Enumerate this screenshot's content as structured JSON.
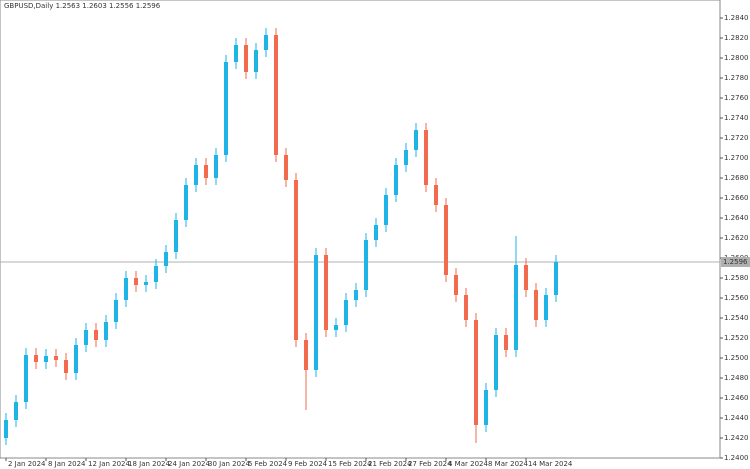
{
  "chart_data": {
    "type": "candlestick",
    "title": "GBPUSD,Daily  1.2563 1.2603 1.2556 1.2596",
    "up_color": "#1fb4e6",
    "down_color": "#f26b4f",
    "grid": false,
    "ylim": [
      1.24,
      1.2858
    ],
    "yticks": [
      {
        "value": 1.24,
        "label": "1.2400"
      },
      {
        "value": 1.242,
        "label": "1.2420"
      },
      {
        "value": 1.244,
        "label": "1.2440"
      },
      {
        "value": 1.246,
        "label": "1.2460"
      },
      {
        "value": 1.248,
        "label": "1.2480"
      },
      {
        "value": 1.25,
        "label": "1.2500"
      },
      {
        "value": 1.252,
        "label": "1.2520"
      },
      {
        "value": 1.254,
        "label": "1.2540"
      },
      {
        "value": 1.256,
        "label": "1.2560"
      },
      {
        "value": 1.258,
        "label": "1.2580"
      },
      {
        "value": 1.26,
        "label": "1.2600"
      },
      {
        "value": 1.262,
        "label": "1.2620"
      },
      {
        "value": 1.264,
        "label": "1.2640"
      },
      {
        "value": 1.266,
        "label": "1.2660"
      },
      {
        "value": 1.268,
        "label": "1.2680"
      },
      {
        "value": 1.27,
        "label": "1.2700"
      },
      {
        "value": 1.272,
        "label": "1.2720"
      },
      {
        "value": 1.274,
        "label": "1.2740"
      },
      {
        "value": 1.276,
        "label": "1.2760"
      },
      {
        "value": 1.278,
        "label": "1.2780"
      },
      {
        "value": 1.28,
        "label": "1.2800"
      },
      {
        "value": 1.282,
        "label": "1.2820"
      },
      {
        "value": 1.284,
        "label": "1.2840"
      }
    ],
    "bid": {
      "value": 1.2596,
      "label": "1.2596"
    },
    "categories": [
      "2 Jan 2024",
      null,
      null,
      null,
      "8 Jan 2024",
      null,
      null,
      null,
      "12 Jan 2024",
      null,
      null,
      null,
      "18 Jan 2024",
      null,
      null,
      null,
      "24 Jan 2024",
      null,
      null,
      null,
      "30 Jan 2024",
      null,
      null,
      null,
      "5 Feb 2024",
      null,
      null,
      null,
      "9 Feb 2024",
      null,
      null,
      null,
      "15 Feb 2024",
      null,
      null,
      null,
      "21 Feb 2024",
      null,
      null,
      null,
      "27 Feb 2024",
      null,
      null,
      null,
      "4 Mar 2024",
      null,
      null,
      null,
      "8 Mar 2024",
      null,
      null,
      null,
      "14 Mar 2024",
      null,
      null,
      null
    ],
    "open": [
      1.242,
      1.2438,
      1.2456,
      1.2503,
      1.2496,
      1.2502,
      1.2498,
      1.2485,
      1.2513,
      1.2528,
      1.2518,
      1.2536,
      1.2558,
      1.258,
      1.2573,
      1.2576,
      1.2592,
      1.2606,
      1.2638,
      1.2673,
      1.2693,
      1.268,
      1.2703,
      1.2796,
      1.2813,
      1.2786,
      1.2808,
      1.2823,
      1.2703,
      1.2678,
      1.2518,
      1.2488,
      1.2603,
      1.2528,
      1.2533,
      1.2558,
      1.2568,
      1.2618,
      1.2633,
      1.2663,
      1.2693,
      1.2708,
      1.2728,
      1.2673,
      1.2653,
      1.2583,
      1.2563,
      1.2538,
      1.2433,
      1.2468,
      1.2523,
      1.2508,
      1.2593,
      1.2568,
      1.2538,
      1.2563
    ],
    "high": [
      1.2445,
      1.2463,
      1.251,
      1.251,
      1.2509,
      1.2509,
      1.2505,
      1.252,
      1.2535,
      1.2535,
      1.2543,
      1.2565,
      1.2587,
      1.2587,
      1.2583,
      1.2599,
      1.2613,
      1.2645,
      1.268,
      1.27,
      1.27,
      1.271,
      1.2803,
      1.282,
      1.282,
      1.2815,
      1.283,
      1.283,
      1.271,
      1.2685,
      1.2525,
      1.261,
      1.261,
      1.254,
      1.2565,
      1.2575,
      1.2625,
      1.264,
      1.267,
      1.27,
      1.2715,
      1.2735,
      1.2735,
      1.268,
      1.266,
      1.259,
      1.257,
      1.2545,
      1.2475,
      1.253,
      1.253,
      1.2622,
      1.26,
      1.2575,
      1.257,
      1.2603
    ],
    "low": [
      1.2413,
      1.2431,
      1.2449,
      1.2489,
      1.2489,
      1.2491,
      1.2478,
      1.2478,
      1.2506,
      1.2511,
      1.2511,
      1.2529,
      1.2551,
      1.2566,
      1.2566,
      1.2569,
      1.2585,
      1.2599,
      1.2631,
      1.2666,
      1.2673,
      1.2673,
      1.2696,
      1.2789,
      1.2779,
      1.2779,
      1.2801,
      1.2696,
      1.2671,
      1.2511,
      1.2448,
      1.2481,
      1.2521,
      1.2521,
      1.2526,
      1.2551,
      1.2561,
      1.2611,
      1.2626,
      1.2656,
      1.2686,
      1.2701,
      1.2666,
      1.2646,
      1.2576,
      1.2556,
      1.2531,
      1.2415,
      1.2426,
      1.2461,
      1.2501,
      1.2501,
      1.2561,
      1.2531,
      1.2531,
      1.2556
    ],
    "close": [
      1.2438,
      1.2456,
      1.2503,
      1.2496,
      1.2502,
      1.2498,
      1.2485,
      1.2513,
      1.2528,
      1.2518,
      1.2536,
      1.2558,
      1.258,
      1.2573,
      1.2576,
      1.2592,
      1.2606,
      1.2638,
      1.2673,
      1.2693,
      1.268,
      1.2703,
      1.2796,
      1.2813,
      1.2786,
      1.2808,
      1.2823,
      1.2703,
      1.2678,
      1.2518,
      1.2488,
      1.2603,
      1.2528,
      1.2533,
      1.2558,
      1.2568,
      1.2618,
      1.2633,
      1.2663,
      1.2693,
      1.2708,
      1.2728,
      1.2673,
      1.2653,
      1.2583,
      1.2563,
      1.2538,
      1.2433,
      1.2468,
      1.2523,
      1.2508,
      1.2593,
      1.2568,
      1.2538,
      1.2563,
      1.2596
    ]
  }
}
